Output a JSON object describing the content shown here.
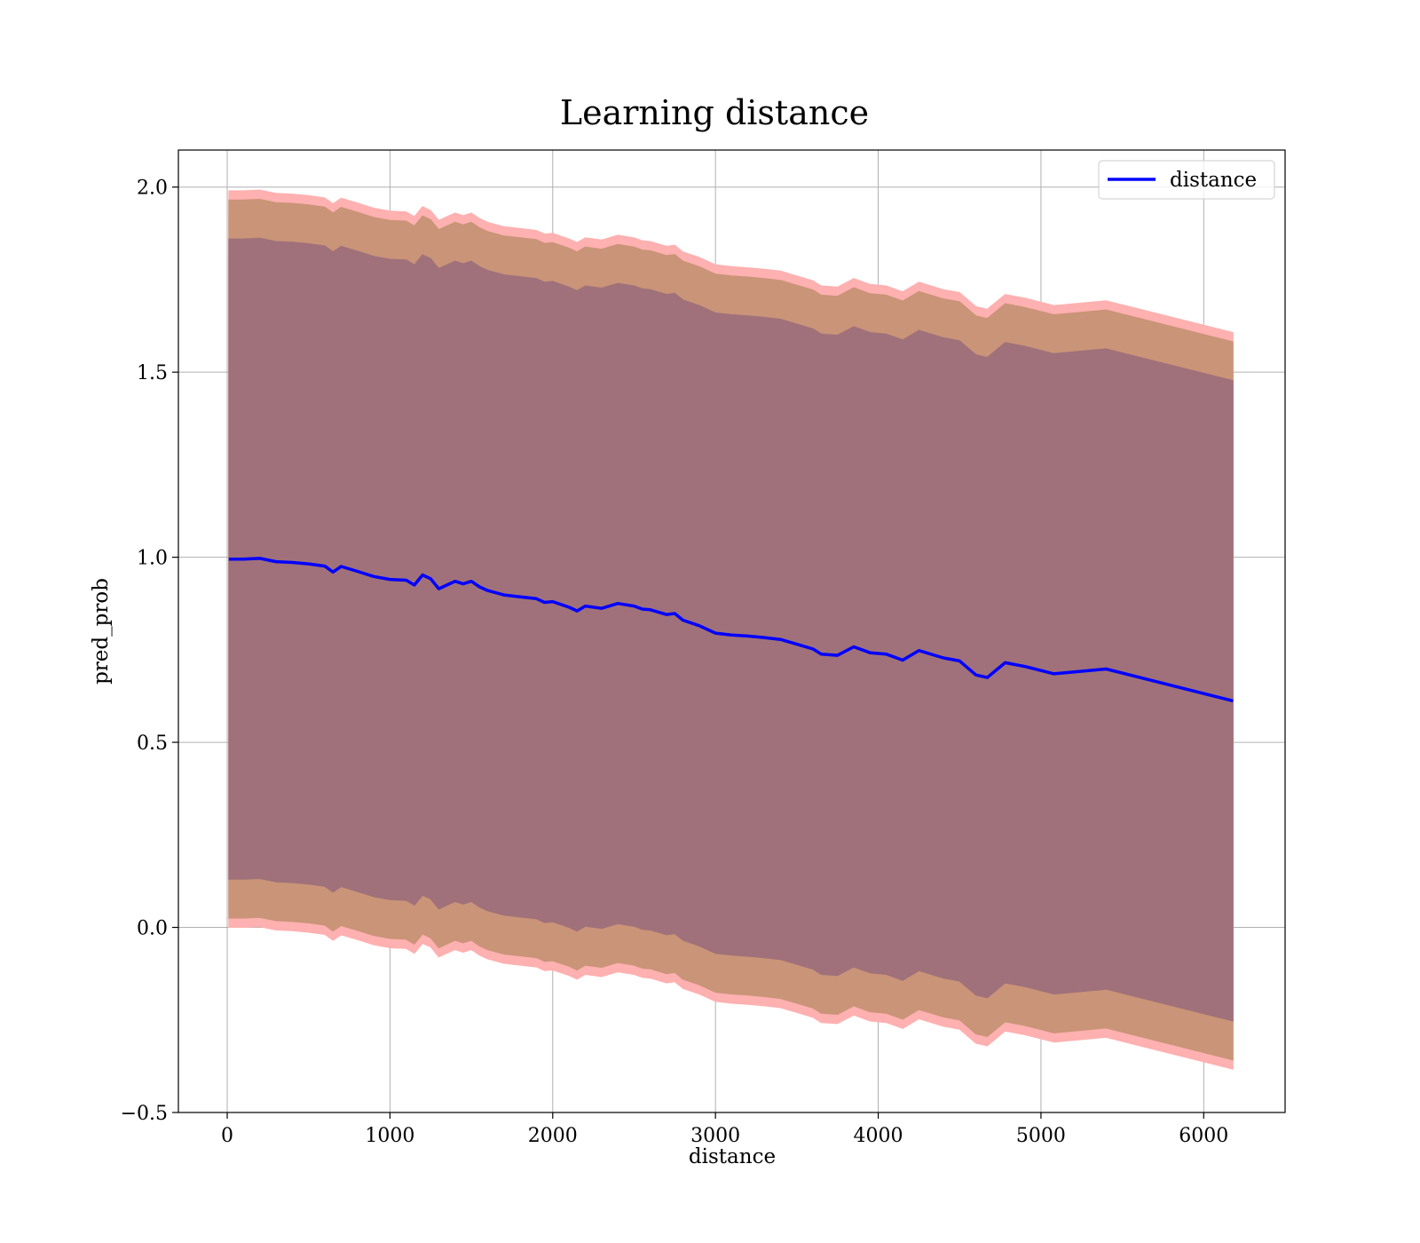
{
  "chart_data": {
    "type": "line",
    "title": "Learning distance",
    "xlabel": "distance",
    "ylabel": "pred_prob",
    "xlim": [
      -300,
      6500
    ],
    "ylim": [
      -0.5,
      2.1
    ],
    "xticks": [
      0,
      1000,
      2000,
      3000,
      4000,
      5000,
      6000
    ],
    "xtick_labels": [
      "0",
      "1000",
      "2000",
      "3000",
      "4000",
      "5000",
      "6000"
    ],
    "yticks": [
      -0.5,
      0.0,
      0.5,
      1.0,
      1.5,
      2.0
    ],
    "ytick_labels": [
      "−0.5",
      "0.0",
      "0.5",
      "1.0",
      "1.5",
      "2.0"
    ],
    "grid": true,
    "legend": {
      "position": "top-right",
      "entries": [
        "distance"
      ]
    },
    "colors": {
      "line": "#0000ff",
      "band_outer": "#ffb0b0",
      "band_middle": "#c99478",
      "band_inner": "#a0717a"
    },
    "x": [
      10,
      100,
      200,
      300,
      400,
      500,
      600,
      650,
      700,
      800,
      900,
      1000,
      1100,
      1150,
      1200,
      1250,
      1300,
      1350,
      1400,
      1450,
      1500,
      1550,
      1600,
      1700,
      1800,
      1900,
      1950,
      2000,
      2100,
      2150,
      2200,
      2300,
      2400,
      2500,
      2550,
      2600,
      2700,
      2750,
      2800,
      2900,
      3000,
      3100,
      3200,
      3300,
      3400,
      3500,
      3600,
      3650,
      3750,
      3850,
      3950,
      4050,
      4150,
      4250,
      4400,
      4500,
      4600,
      4670,
      4780,
      4900,
      5080,
      5400,
      6180
    ],
    "series": [
      {
        "name": "distance",
        "values": [
          0.995,
          0.995,
          0.997,
          0.988,
          0.986,
          0.982,
          0.976,
          0.96,
          0.975,
          0.962,
          0.948,
          0.94,
          0.938,
          0.925,
          0.952,
          0.942,
          0.915,
          0.925,
          0.935,
          0.928,
          0.935,
          0.92,
          0.91,
          0.898,
          0.893,
          0.888,
          0.878,
          0.88,
          0.865,
          0.855,
          0.868,
          0.862,
          0.875,
          0.868,
          0.86,
          0.858,
          0.845,
          0.848,
          0.83,
          0.815,
          0.795,
          0.79,
          0.787,
          0.783,
          0.778,
          0.765,
          0.752,
          0.738,
          0.735,
          0.758,
          0.742,
          0.738,
          0.722,
          0.748,
          0.728,
          0.72,
          0.682,
          0.675,
          0.715,
          0.705,
          0.685,
          0.698,
          0.612
        ],
        "bands": [
          {
            "level": "outer",
            "upper_offset": 0.995,
            "lower_offset": -0.995
          },
          {
            "level": "middle",
            "upper_offset": 0.97,
            "lower_offset": -0.97
          },
          {
            "level": "inner",
            "upper_offset": 0.865,
            "lower_offset": -0.865
          }
        ]
      }
    ]
  }
}
